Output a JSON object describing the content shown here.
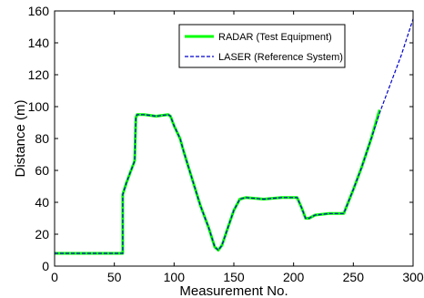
{
  "chart_data": {
    "type": "line",
    "xlabel": "Measurement No.",
    "ylabel": "Distance (m)",
    "xlim": [
      0,
      300
    ],
    "ylim": [
      0,
      160
    ],
    "xticks": [
      "0",
      "50",
      "100",
      "150",
      "200",
      "250",
      "300"
    ],
    "yticks": [
      "0",
      "20",
      "40",
      "60",
      "80",
      "100",
      "120",
      "140",
      "160"
    ],
    "grid": false,
    "legend_position": "top-right",
    "series": [
      {
        "name": "RADAR (Test Equipment)",
        "color": "#00ff00",
        "style": "solid",
        "points": [
          [
            0,
            8
          ],
          [
            57,
            8
          ],
          [
            57,
            45
          ],
          [
            60,
            52
          ],
          [
            63,
            58
          ],
          [
            67,
            66
          ],
          [
            68,
            93
          ],
          [
            69,
            95
          ],
          [
            75,
            95
          ],
          [
            85,
            94
          ],
          [
            95,
            95
          ],
          [
            97,
            94
          ],
          [
            100,
            88
          ],
          [
            105,
            80
          ],
          [
            108,
            72
          ],
          [
            115,
            55
          ],
          [
            122,
            38
          ],
          [
            129,
            24
          ],
          [
            134,
            12
          ],
          [
            137,
            10
          ],
          [
            140,
            13
          ],
          [
            145,
            24
          ],
          [
            150,
            35
          ],
          [
            155,
            42
          ],
          [
            160,
            43
          ],
          [
            175,
            42
          ],
          [
            190,
            43
          ],
          [
            203,
            43
          ],
          [
            207,
            36
          ],
          [
            210,
            30
          ],
          [
            213,
            30
          ],
          [
            218,
            32
          ],
          [
            230,
            33
          ],
          [
            242,
            33
          ],
          [
            250,
            48
          ],
          [
            257,
            62
          ],
          [
            265,
            80
          ],
          [
            272,
            98
          ]
        ]
      },
      {
        "name": "LASER (Reference System)",
        "color": "#0000cc",
        "style": "dashed",
        "points": [
          [
            0,
            8
          ],
          [
            57,
            8
          ],
          [
            57,
            45
          ],
          [
            60,
            52
          ],
          [
            63,
            58
          ],
          [
            67,
            66
          ],
          [
            68,
            93
          ],
          [
            69,
            95
          ],
          [
            75,
            95
          ],
          [
            85,
            94
          ],
          [
            95,
            95
          ],
          [
            97,
            94
          ],
          [
            100,
            88
          ],
          [
            105,
            80
          ],
          [
            108,
            72
          ],
          [
            115,
            55
          ],
          [
            122,
            38
          ],
          [
            129,
            24
          ],
          [
            134,
            12
          ],
          [
            137,
            10
          ],
          [
            140,
            13
          ],
          [
            145,
            24
          ],
          [
            150,
            35
          ],
          [
            155,
            42
          ],
          [
            160,
            43
          ],
          [
            175,
            42
          ],
          [
            190,
            43
          ],
          [
            203,
            43
          ],
          [
            207,
            36
          ],
          [
            210,
            30
          ],
          [
            213,
            30
          ],
          [
            218,
            32
          ],
          [
            230,
            33
          ],
          [
            242,
            33
          ],
          [
            250,
            48
          ],
          [
            257,
            62
          ],
          [
            265,
            80
          ],
          [
            272,
            96
          ],
          [
            280,
            112
          ],
          [
            290,
            132
          ],
          [
            300,
            155
          ]
        ]
      }
    ]
  }
}
